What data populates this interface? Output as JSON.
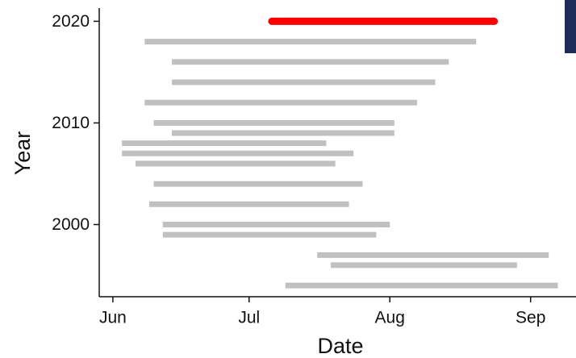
{
  "chart_data": {
    "type": "segment",
    "x_label": "Date",
    "y_label": "Year",
    "y": [
      2020,
      2018,
      2016,
      2014,
      2012,
      2010,
      2009,
      2008,
      2007,
      2006,
      2004,
      2002,
      2000,
      1999,
      1997,
      1996,
      1994
    ],
    "start": [
      187,
      159,
      165,
      165,
      159,
      161,
      165,
      154,
      154,
      157,
      161,
      160,
      163,
      163,
      197,
      200,
      190
    ],
    "end": [
      236,
      232,
      226,
      223,
      219,
      214,
      214,
      199,
      205,
      201,
      207,
      204,
      213,
      210,
      248,
      241,
      250
    ],
    "colors": [
      "#ff0000",
      "#c0c0c0",
      "#c0c0c0",
      "#c0c0c0",
      "#c0c0c0",
      "#c0c0c0",
      "#c0c0c0",
      "#c0c0c0",
      "#c0c0c0",
      "#c0c0c0",
      "#c0c0c0",
      "#c0c0c0",
      "#c0c0c0",
      "#c0c0c0",
      "#c0c0c0",
      "#c0c0c0",
      "#c0c0c0"
    ],
    "xlim": [
      149,
      254
    ],
    "xticks": [
      {
        "value": 152,
        "label": "Jun"
      },
      {
        "value": 182,
        "label": "Jul"
      },
      {
        "value": 213,
        "label": "Aug"
      },
      {
        "value": 244,
        "label": "Sep"
      }
    ],
    "ylim": [
      1992.9,
      2021.3
    ],
    "yticks": [
      2000,
      2010,
      2020
    ],
    "grid": false
  }
}
